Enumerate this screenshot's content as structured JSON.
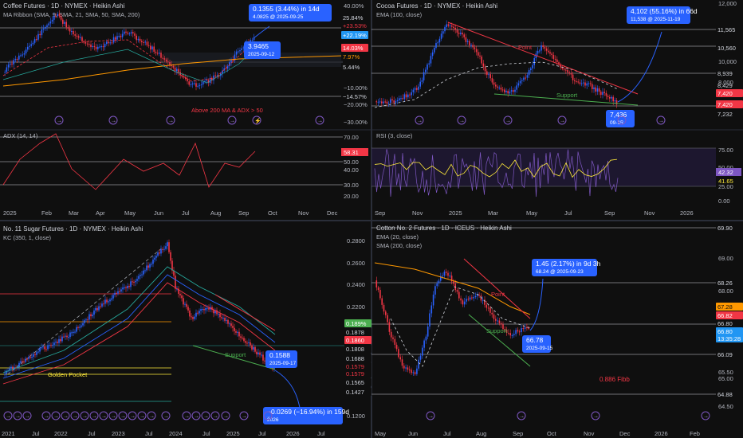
{
  "panels": [
    {
      "id": "coffee",
      "title": "Coffee Futures · 1D · NYMEX · Heikin Ashi",
      "indicator": "MA Ribbon (SMA, 9, SMA, 21, SMA, 50, SMA, 200)",
      "price_labels": [
        {
          "text": "40.00%",
          "type": "axis"
        },
        {
          "text": "30.00%",
          "type": "axis"
        },
        {
          "text": "25.84%",
          "type": "box",
          "color": "#0f0f0f",
          "fg": "#d1d4dc"
        },
        {
          "text": "+23.53%",
          "type": "box",
          "color": "#0f0f0f",
          "fg": "#f23645"
        },
        {
          "text": "+22.19%",
          "type": "box",
          "color": "#2196f3",
          "fg": "#ffffff"
        },
        {
          "text": "14.03%",
          "type": "box",
          "color": "#f23645",
          "fg": "#ffffff"
        },
        {
          "text": "7.97%",
          "type": "box",
          "color": "#0f0f0f",
          "fg": "#ff9800"
        },
        {
          "text": "5.44%",
          "type": "box",
          "color": "#0f0f0f",
          "fg": "#d1d4dc"
        },
        {
          "text": "−10.00%",
          "type": "axis"
        },
        {
          "text": "−14.57%",
          "type": "box",
          "color": "#0f0f0f",
          "fg": "#d1d4dc"
        },
        {
          "text": "−20.00%",
          "type": "axis"
        },
        {
          "text": "−30.00%",
          "type": "axis"
        }
      ],
      "callout_top": {
        "line1": "0.1355 (3.44%) in 14d",
        "line2": "4.0825 @ 2025-09-25"
      },
      "callout_mid": {
        "line1": "3.9465",
        "line2": "2025-09-12"
      },
      "note": "Above 200 MA & ADX > 50",
      "sub_title": "ADX (14, 14)",
      "sub_labels": [
        "70.00",
        "58.31",
        "50.00",
        "40.00",
        "30.00",
        "20.00"
      ],
      "x_labels": [
        "2025",
        "Feb",
        "Mar",
        "Apr",
        "May",
        "Jun",
        "Jul",
        "Aug",
        "Sep",
        "Oct",
        "Nov",
        "Dec"
      ]
    },
    {
      "id": "cocoa",
      "title": "Cocoa Futures · 1D · NYMEX · Heikin Ashi",
      "indicator": "EMA (100, close)",
      "price_labels": [
        {
          "text": "12,000",
          "type": "axis"
        },
        {
          "text": "11,565",
          "type": "box",
          "color": "#0f0f0f",
          "fg": "#d1d4dc"
        },
        {
          "text": "10,560",
          "type": "box",
          "color": "#0f0f0f",
          "fg": "#d1d4dc"
        },
        {
          "text": "10,000",
          "type": "axis"
        },
        {
          "text": "8,939",
          "type": "box",
          "color": "#0f0f0f",
          "fg": "#d1d4dc"
        },
        {
          "text": "8,429",
          "type": "box",
          "color": "#0f0f0f",
          "fg": "#d1d4dc"
        },
        {
          "text": "8,000",
          "type": "axis"
        },
        {
          "text": "7,420",
          "type": "box",
          "color": "#f23645",
          "fg": "#ffffff"
        },
        {
          "text": "7,420",
          "type": "box",
          "color": "#f23645",
          "fg": "#ffffff"
        },
        {
          "text": "7,232",
          "type": "box",
          "color": "#0f0f0f",
          "fg": "#d1d4dc"
        }
      ],
      "callout_top": {
        "line1": "4,102 (55.16%) in 66d",
        "line2": "11,538 @ 2025-11-19"
      },
      "callout_mid": {
        "line1": "7,436",
        "line2": "09-15"
      },
      "trend_labels": [
        "Point",
        "Support"
      ],
      "sub_title": "RSI (3, close)",
      "sub_labels": [
        "75.00",
        "50.00",
        "42.32",
        "41.65",
        "25.00",
        "0.00"
      ],
      "x_labels": [
        "Sep",
        "Nov",
        "2025",
        "Mar",
        "May",
        "Jul",
        "Sep",
        "Nov",
        "2026"
      ]
    },
    {
      "id": "sugar",
      "title": "No. 11 Sugar Futures · 1D · NYMEX · Heikin Ashi",
      "indicator": "KC (350, 1, close)",
      "price_labels": [
        {
          "text": "0.2800",
          "type": "axis"
        },
        {
          "text": "0.2600",
          "type": "axis"
        },
        {
          "text": "0.2400",
          "type": "axis"
        },
        {
          "text": "0.2200",
          "type": "axis"
        },
        {
          "text": "0.189%",
          "type": "box",
          "color": "#4caf50",
          "fg": "#ffffff"
        },
        {
          "text": "0.1878",
          "type": "box",
          "color": "#0f0f0f",
          "fg": "#d1d4dc"
        },
        {
          "text": "0.1860",
          "type": "box",
          "color": "#f23645",
          "fg": "#ffffff"
        },
        {
          "text": "0.1808",
          "type": "box",
          "color": "#0f0f0f",
          "fg": "#d1d4dc"
        },
        {
          "text": "0.1688",
          "type": "box",
          "color": "#0f0f0f",
          "fg": "#d1d4dc"
        },
        {
          "text": "0.1579",
          "type": "box",
          "color": "#0f0f0f",
          "fg": "#f23645"
        },
        {
          "text": "0.1579",
          "type": "box",
          "color": "#0f0f0f",
          "fg": "#f23645"
        },
        {
          "text": "0.1565",
          "type": "box",
          "color": "#0f0f0f",
          "fg": "#d1d4dc"
        },
        {
          "text": "0.1427",
          "type": "box",
          "color": "#0f0f0f",
          "fg": "#d1d4dc"
        },
        {
          "text": "0.1200",
          "type": "axis"
        }
      ],
      "callout_mid": {
        "line1": "0.1588",
        "line2": "2025-09-17"
      },
      "callout_bottom": {
        "line1": "−0.0269 (−16.94%) in 159d",
        "line2": "2026"
      },
      "trend_labels": [
        "Support",
        "Golden Pocket"
      ],
      "x_labels": [
        "2021",
        "Jul",
        "2022",
        "Jul",
        "2023",
        "Jul",
        "2024",
        "Jul",
        "2025",
        "Jul",
        "2026",
        "Jul"
      ]
    },
    {
      "id": "cotton",
      "title": "Cotton No. 2 Futures · 1D · ICEUS · Heikin Ashi",
      "indicators": [
        "EMA (20, close)",
        "SMA (200, close)"
      ],
      "price_labels": [
        {
          "text": "69.90",
          "type": "box",
          "color": "#0f0f0f",
          "fg": "#d1d4dc"
        },
        {
          "text": "69.00",
          "type": "axis"
        },
        {
          "text": "68.26",
          "type": "box",
          "color": "#0f0f0f",
          "fg": "#d1d4dc"
        },
        {
          "text": "68.00",
          "type": "axis"
        },
        {
          "text": "67.28",
          "type": "box",
          "color": "#ff9800",
          "fg": "#0f0f0f"
        },
        {
          "text": "66.82",
          "type": "box",
          "color": "#f23645",
          "fg": "#ffffff"
        },
        {
          "text": "66.80",
          "type": "box",
          "color": "#0f0f0f",
          "fg": "#d1d4dc"
        },
        {
          "text": "66.80",
          "type": "box",
          "color": "#2196f3",
          "fg": "#ffffff"
        },
        {
          "text": "13:35:28",
          "type": "box",
          "color": "#2196f3",
          "fg": "#ffffff"
        },
        {
          "text": "66.09",
          "type": "box",
          "color": "#0f0f0f",
          "fg": "#d1d4dc"
        },
        {
          "text": "65.50",
          "type": "axis"
        },
        {
          "text": "65.00",
          "type": "axis"
        },
        {
          "text": "64.88",
          "type": "box",
          "color": "#0f0f0f",
          "fg": "#d1d4dc"
        },
        {
          "text": "64.50",
          "type": "axis"
        }
      ],
      "callout_top": {
        "line1": "1.45 (2.17%) in 9d 3h",
        "line2": "68.24 @ 2025-09-23"
      },
      "callout_mid": {
        "line1": "66.78",
        "line2": "2025-09-15"
      },
      "trend_labels": [
        "Point",
        "Support"
      ],
      "note": "0.886 Fibb",
      "x_labels": [
        "May",
        "Jun",
        "Jul",
        "Aug",
        "Sep",
        "Oct",
        "Nov",
        "Dec",
        "2026",
        "Feb"
      ]
    }
  ]
}
